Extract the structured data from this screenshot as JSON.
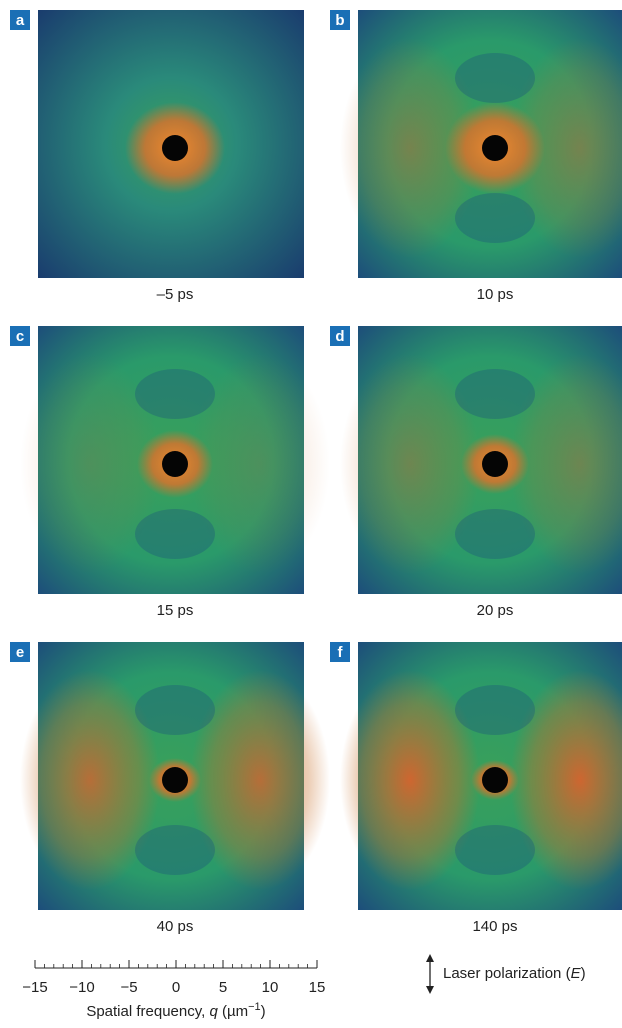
{
  "panels": [
    {
      "label": "a",
      "caption": "–5 ps"
    },
    {
      "label": "b",
      "caption": "10 ps"
    },
    {
      "label": "c",
      "caption": "15 ps"
    },
    {
      "label": "d",
      "caption": "20 ps"
    },
    {
      "label": "e",
      "caption": "40 ps"
    },
    {
      "label": "f",
      "caption": "140 ps"
    }
  ],
  "scale": {
    "xlim": [
      -15,
      15
    ],
    "xticks": [
      {
        "value": -15,
        "label": "−15"
      },
      {
        "value": -10,
        "label": "−10"
      },
      {
        "value": -5,
        "label": "−5"
      },
      0,
      5,
      10,
      15
    ],
    "minor_ticks": [
      -15,
      -14,
      -13,
      -12,
      -11,
      -10,
      -9,
      -8,
      -7,
      -6,
      -5,
      -4,
      -3,
      -2,
      -1,
      0,
      1,
      2,
      3,
      4,
      5,
      6,
      7,
      8,
      9,
      10,
      11,
      12,
      13,
      14,
      15
    ],
    "label": {
      "text": "Spatial frequency, ",
      "symbol": "q",
      "unit": " (µm",
      "exponent": "−1",
      "close": ")"
    }
  },
  "legend": {
    "text": "Laser polarization (",
    "symbol": "E",
    "close": ")"
  }
}
